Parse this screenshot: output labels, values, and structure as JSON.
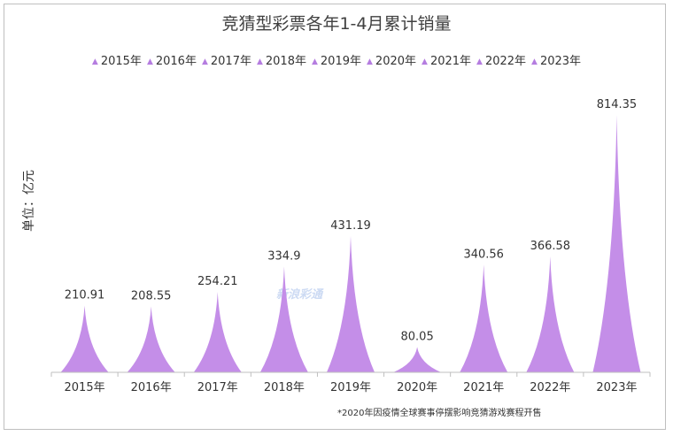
{
  "chart_data": {
    "type": "bar",
    "title": "竞猜型彩票各年1-4月累计销量",
    "ylabel": "单位：亿元",
    "xlabel": "",
    "categories": [
      "2015年",
      "2016年",
      "2017年",
      "2018年",
      "2019年",
      "2020年",
      "2021年",
      "2022年",
      "2023年"
    ],
    "values": [
      210.91,
      208.55,
      254.21,
      334.9,
      431.19,
      80.05,
      340.56,
      366.58,
      814.35
    ],
    "data_labels": [
      "210.91",
      "208.55",
      "254.21",
      "334.9",
      "431.19",
      "80.05",
      "340.56",
      "366.58",
      "814.35"
    ],
    "legend": [
      "2015年",
      "2016年",
      "2017年",
      "2018年",
      "2019年",
      "2020年",
      "2021年",
      "2022年",
      "2023年"
    ],
    "legend_position": "top",
    "ylim": [
      0,
      820
    ],
    "grid": false,
    "bar_shape": "peak",
    "color": "#c48ee8",
    "note": "*2020年因疫情全球赛事停摆影响竞猜游戏赛程开售"
  },
  "watermark": "新浪彩通",
  "legend_marker": "▲"
}
